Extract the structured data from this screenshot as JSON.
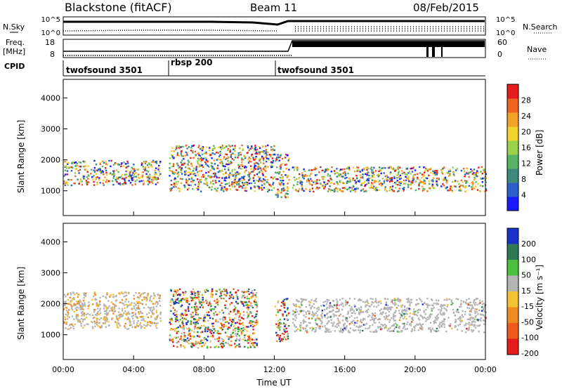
{
  "header": {
    "station": "Blackstone (fitACF)",
    "beam": "Beam 11",
    "date": "08/Feb/2015"
  },
  "left_labels": {
    "nsky": "N.Sky",
    "freq_top": "Freq.",
    "freq_unit": "[MHz]",
    "cpid": "CPID"
  },
  "right_labels": {
    "nsearch": "N.Search",
    "nave": "Nave"
  },
  "noise_axis": {
    "left_ticks": [
      "10^5",
      "10^0"
    ],
    "right_ticks": [
      "10^5",
      "10^0"
    ]
  },
  "freq_axis": {
    "left_ticks": [
      "18",
      "8"
    ],
    "right_ticks": [
      "60",
      "0"
    ]
  },
  "cpid_segments": [
    {
      "label": "twofsound 3501",
      "start_hour": 0
    },
    {
      "label": "rbsp 200",
      "start_hour": 6
    },
    {
      "label": "twofsound 3501",
      "start_hour": 12
    }
  ],
  "chart_data": [
    {
      "type": "heatmap",
      "name": "power",
      "ylabel": "Slant Range [km]",
      "xlim": [
        0,
        24
      ],
      "ylim": [
        200,
        4600
      ],
      "y_ticks": [
        1000,
        2000,
        3000,
        4000
      ],
      "x_tick_labels": [
        "00:00",
        "04:00",
        "08:00",
        "12:00",
        "16:00",
        "20:00",
        "00:00"
      ],
      "colorbar": {
        "label": "Power [dB]",
        "ticks": [
          4,
          8,
          12,
          16,
          20,
          24,
          28
        ],
        "range": [
          0,
          32
        ]
      },
      "features": [
        {
          "hours": [
            0,
            5.5
          ],
          "range_km": [
            1200,
            2000
          ]
        },
        {
          "hours": [
            6,
            12
          ],
          "range_km": [
            1000,
            2500
          ]
        },
        {
          "hours": [
            12,
            12.8
          ],
          "range_km": [
            800,
            2200
          ]
        },
        {
          "hours": [
            13,
            24
          ],
          "range_km": [
            1000,
            1800
          ]
        }
      ]
    },
    {
      "type": "heatmap",
      "name": "velocity",
      "ylabel": "Slant Range [km]",
      "xlabel": "Time UT",
      "xlim": [
        0,
        24
      ],
      "ylim": [
        200,
        4600
      ],
      "y_ticks": [
        1000,
        2000,
        3000,
        4000
      ],
      "x_tick_labels": [
        "00:00",
        "04:00",
        "08:00",
        "12:00",
        "16:00",
        "20:00",
        "00:00"
      ],
      "colorbar": {
        "label": "Velocity [m s⁻¹]",
        "ticks": [
          200,
          100,
          50,
          15,
          -15,
          -50,
          -100,
          -200
        ]
      },
      "features": [
        {
          "hours": [
            0,
            5.5
          ],
          "range_km": [
            1200,
            2400
          ]
        },
        {
          "hours": [
            6,
            11
          ],
          "range_km": [
            600,
            2500
          ]
        },
        {
          "hours": [
            12,
            12.8
          ],
          "range_km": [
            800,
            2200
          ]
        },
        {
          "hours": [
            13,
            24
          ],
          "range_km": [
            1100,
            2200
          ]
        }
      ]
    }
  ],
  "colors": {
    "power_scale": [
      "#1a1aff",
      "#2a5fc8",
      "#3b8a7d",
      "#58b368",
      "#9bd04a",
      "#f2d22c",
      "#f2a227",
      "#ef6420",
      "#e61b1b"
    ],
    "velocity_scale": [
      "#1a30c8",
      "#2e7a55",
      "#4cbf3c",
      "#b5b5b5",
      "#f2c232",
      "#f08b20",
      "#ee5a1a",
      "#e61b1b"
    ],
    "ground_scatter": "#b8b8b8",
    "axis": "#000000"
  }
}
